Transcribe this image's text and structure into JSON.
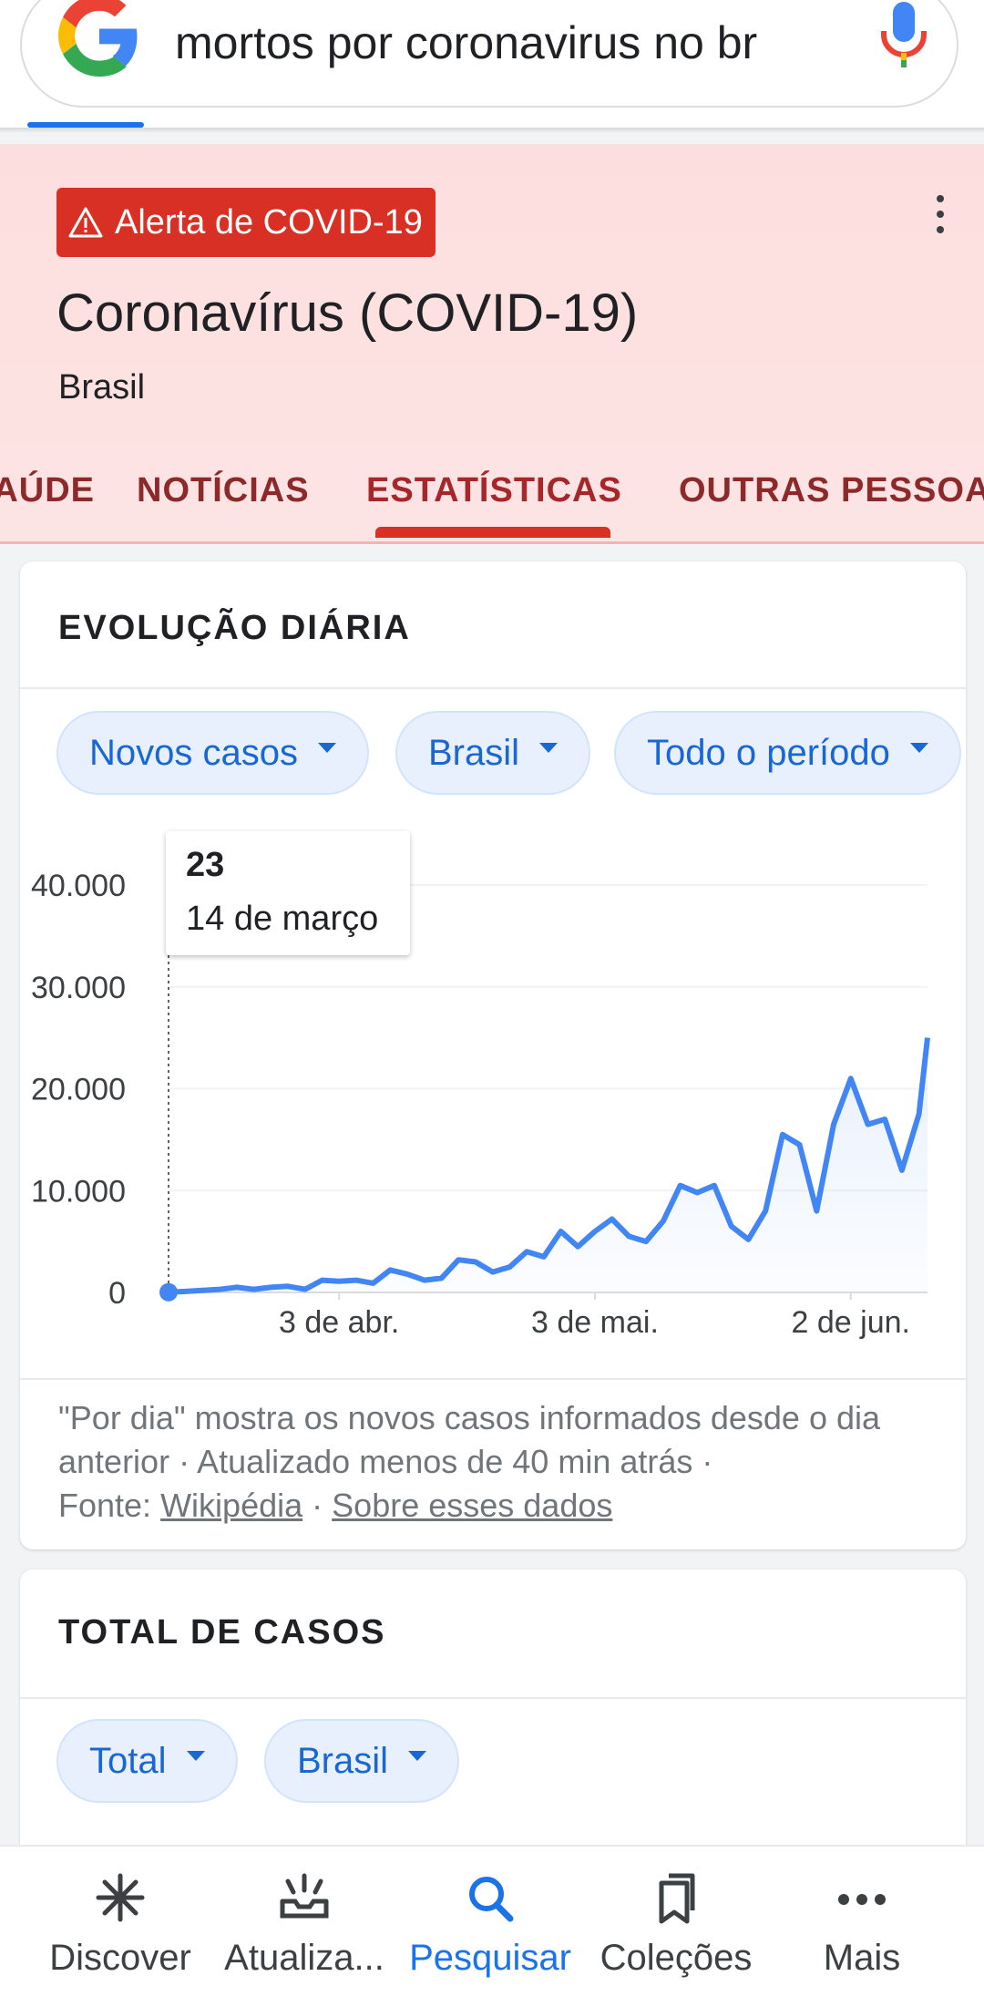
{
  "search": {
    "query": "mortos por coronavirus no br",
    "icons": [
      "google-logo",
      "mic-icon"
    ]
  },
  "covid": {
    "alert_label": "Alerta de COVID-19",
    "title": "Coronavírus (COVID-19)",
    "subtitle": "Brasil",
    "tabs": [
      {
        "label": "SAÚDE"
      },
      {
        "label": "NOTÍCIAS"
      },
      {
        "label": "ESTATÍSTICAS",
        "active": true
      },
      {
        "label": "OUTRAS PESSOAS"
      }
    ]
  },
  "daily_card": {
    "title": "EVOLUÇÃO DIÁRIA",
    "chips": [
      "Novos casos",
      "Brasil",
      "Todo o período"
    ],
    "tooltip": {
      "value": "23",
      "date": "14 de março"
    },
    "footnote": {
      "text": "\"Por dia\" mostra os novos casos informados desde o dia anterior · Atualizado menos de 40 min atrás ·",
      "source_prefix": "Fonte:",
      "source_link": "Wikipédia",
      "separator": "·",
      "about_link": "Sobre esses dados"
    }
  },
  "total_card": {
    "title": "TOTAL DE CASOS",
    "chips": [
      "Total",
      "Brasil"
    ]
  },
  "chart_data": {
    "type": "line",
    "title": "EVOLUÇÃO DIÁRIA",
    "xlabel": "",
    "ylabel": "",
    "x_tick_labels": [
      "3 de abr.",
      "3 de mai.",
      "2 de jun."
    ],
    "y_tick_labels": [
      "0",
      "10.000",
      "20.000",
      "30.000",
      "40.000"
    ],
    "ylim": [
      0,
      40000
    ],
    "grid": true,
    "legend": "none",
    "series": [
      {
        "color": "#4285f4",
        "x": [
          "2020-03-14",
          "2020-03-16",
          "2020-03-18",
          "2020-03-20",
          "2020-03-22",
          "2020-03-24",
          "2020-03-26",
          "2020-03-28",
          "2020-03-30",
          "2020-04-01",
          "2020-04-03",
          "2020-04-05",
          "2020-04-07",
          "2020-04-09",
          "2020-04-11",
          "2020-04-13",
          "2020-04-15",
          "2020-04-17",
          "2020-04-19",
          "2020-04-21",
          "2020-04-23",
          "2020-04-25",
          "2020-04-27",
          "2020-04-29",
          "2020-05-01",
          "2020-05-03",
          "2020-05-05",
          "2020-05-07",
          "2020-05-09",
          "2020-05-11",
          "2020-05-13",
          "2020-05-15",
          "2020-05-17",
          "2020-05-19",
          "2020-05-21",
          "2020-05-23",
          "2020-05-25",
          "2020-05-27",
          "2020-05-29",
          "2020-05-31",
          "2020-06-02",
          "2020-06-04",
          "2020-06-06",
          "2020-06-08",
          "2020-06-10",
          "2020-06-11"
        ],
        "y": [
          23,
          100,
          200,
          300,
          500,
          300,
          500,
          600,
          300,
          1200,
          1100,
          1200,
          900,
          2200,
          1800,
          1200,
          1400,
          3200,
          3000,
          2000,
          2500,
          4000,
          3500,
          6000,
          4500,
          6000,
          7200,
          5500,
          5000,
          7000,
          10500,
          9800,
          10500,
          6500,
          5200,
          8000,
          15500,
          14500,
          8000,
          16500,
          21000,
          16500,
          17000,
          12000,
          17500,
          25000
        ]
      }
    ]
  },
  "bottom_nav": {
    "items": [
      {
        "label": "Discover",
        "icon": "asterisk-icon"
      },
      {
        "label": "Atualiza...",
        "icon": "updates-icon"
      },
      {
        "label": "Pesquisar",
        "icon": "search-icon",
        "active": true
      },
      {
        "label": "Coleções",
        "icon": "bookmarks-icon"
      },
      {
        "label": "Mais",
        "icon": "more-horiz-icon"
      }
    ]
  }
}
